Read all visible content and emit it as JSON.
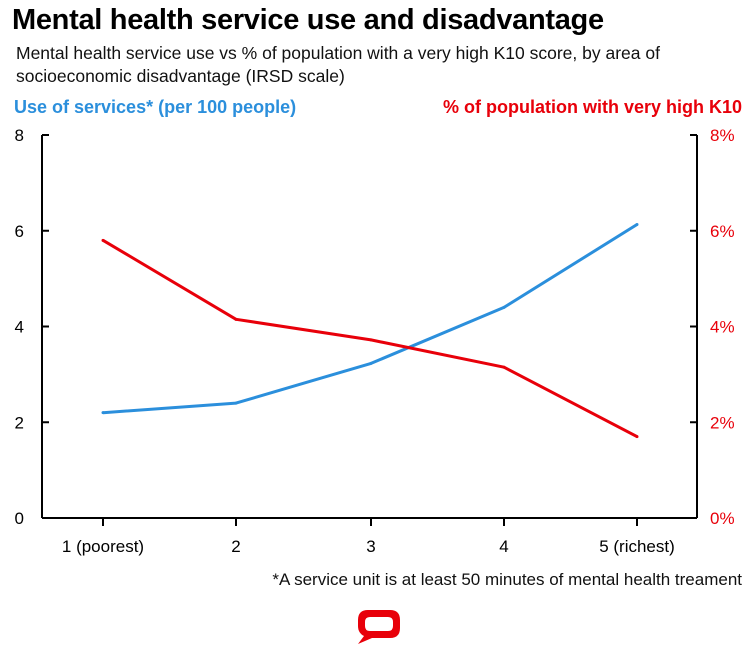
{
  "colors": {
    "blue": "#2b8fdc",
    "red": "#e8000a",
    "axis": "#000000"
  },
  "logo": {
    "name": "speech-bubble-logo",
    "color": "#e8000a"
  },
  "chart_data": {
    "type": "line",
    "title": "Mental health service use and disadvantage",
    "subtitle": "Mental health service use vs % of population with a very high K10 score, by area of socioeconomic disadvantage (IRSD scale)",
    "categories": [
      "1 (poorest)",
      "2",
      "3",
      "4",
      "5 (richest)"
    ],
    "left_axis": {
      "label": "Use of services* (per 100 people)",
      "ylim": [
        0,
        8
      ],
      "ticks": [
        "0",
        "2",
        "4",
        "6",
        "8"
      ]
    },
    "right_axis": {
      "label": "% of population with very high K10",
      "ylim": [
        0,
        8
      ],
      "ticks": [
        "0%",
        "2%",
        "4%",
        "6%",
        "8%"
      ]
    },
    "series": [
      {
        "name": "Use of services* (per 100 people)",
        "axis": "left",
        "color": "#2b8fdc",
        "values": [
          2.2,
          2.4,
          3.23,
          4.4,
          6.13
        ]
      },
      {
        "name": "% of population with very high K10",
        "axis": "right",
        "color": "#e8000a",
        "values": [
          5.8,
          4.15,
          3.72,
          3.15,
          1.7
        ]
      }
    ],
    "footnote": "*A service unit is at least 50 minutes of mental health treament"
  }
}
